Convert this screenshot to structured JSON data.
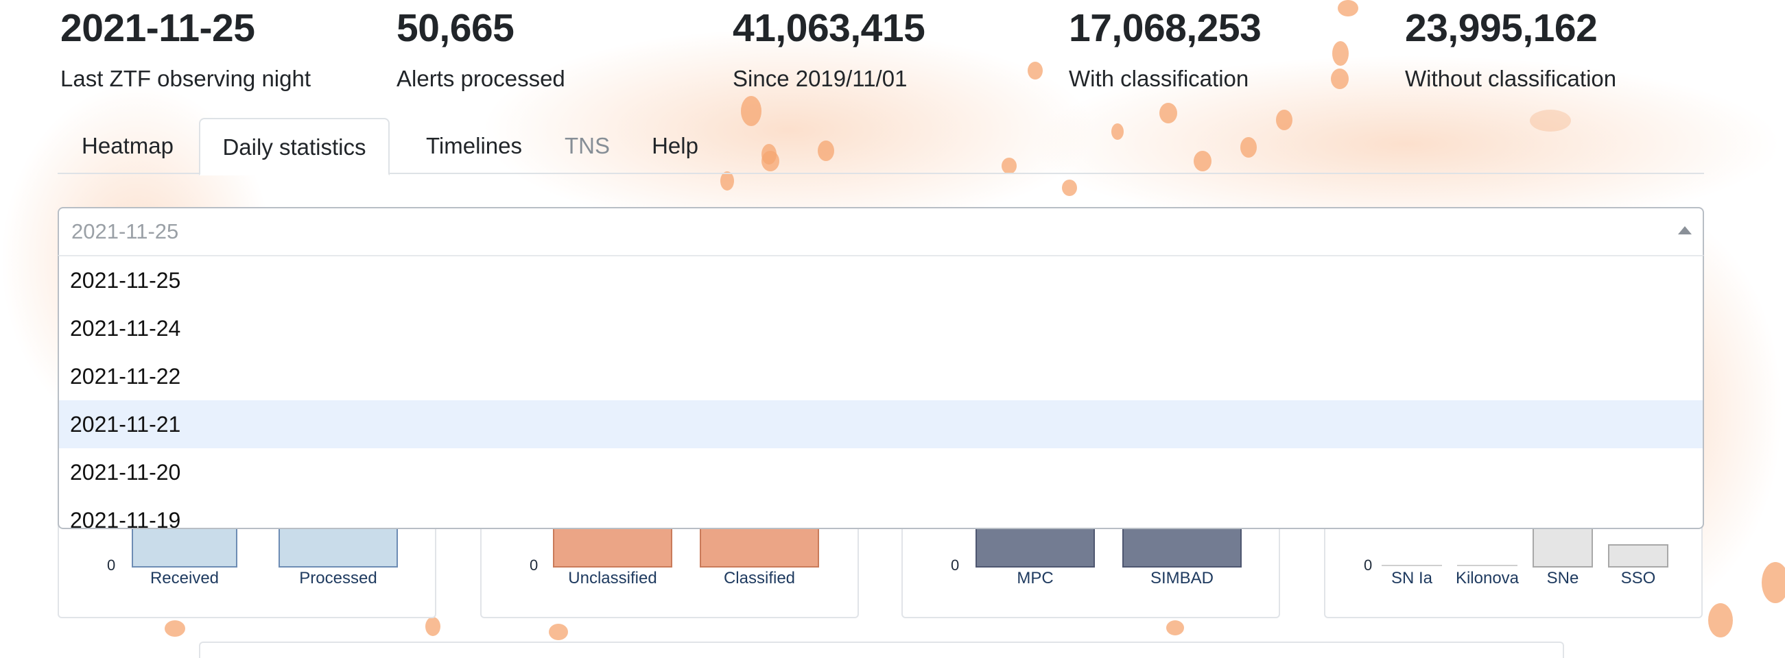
{
  "stats": [
    {
      "value": "2021-11-25",
      "label": "Last ZTF observing night"
    },
    {
      "value": "50,665",
      "label": "Alerts processed"
    },
    {
      "value": "41,063,415",
      "label": "Since 2019/11/01"
    },
    {
      "value": "17,068,253",
      "label": "With classification"
    },
    {
      "value": "23,995,162",
      "label": "Without classification"
    }
  ],
  "tabs": [
    {
      "label": "Heatmap"
    },
    {
      "label": "Daily statistics",
      "active": true
    },
    {
      "label": "Timelines"
    },
    {
      "label": "TNS",
      "disabled": true
    },
    {
      "label": "Help"
    }
  ],
  "date_select": {
    "selected": "2021-11-25",
    "options": [
      "2021-11-25",
      "2021-11-24",
      "2021-11-22",
      "2021-11-21",
      "2021-11-20",
      "2021-11-19"
    ],
    "highlighted": "2021-11-21"
  },
  "cards": [
    {
      "zero": "0",
      "bars": [
        {
          "label": "Received",
          "color": "#c9dcea"
        },
        {
          "label": "Processed",
          "color": "#c9dcea"
        }
      ]
    },
    {
      "zero": "0",
      "bars": [
        {
          "label": "Unclassified",
          "color": "#eba586"
        },
        {
          "label": "Classified",
          "color": "#eba586"
        }
      ]
    },
    {
      "zero": "0",
      "bars": [
        {
          "label": "MPC",
          "color": "#737c92"
        },
        {
          "label": "SIMBAD",
          "color": "#737c92"
        }
      ]
    },
    {
      "zero": "0",
      "bars": [
        {
          "label": "SN Ia",
          "color": "#e5e5e5"
        },
        {
          "label": "Kilonova",
          "color": "#e5e5e5"
        },
        {
          "label": "SNe",
          "color": "#e5e5e5"
        },
        {
          "label": "SSO",
          "color": "#e5e5e5"
        }
      ]
    }
  ],
  "colors": {
    "accent": "#f5a670",
    "highlight": "#e8f1fd"
  }
}
